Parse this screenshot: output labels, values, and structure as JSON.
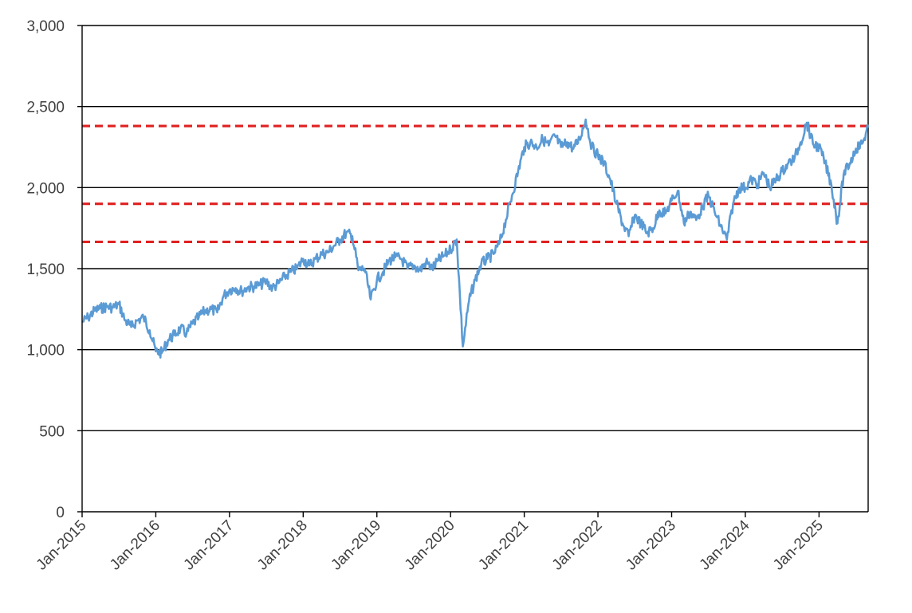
{
  "chart_data": {
    "type": "line",
    "title": "",
    "xlabel": "",
    "ylabel": "",
    "ylim": [
      0,
      3000
    ],
    "yticks": [
      0,
      500,
      1000,
      1500,
      2000,
      2500,
      3000
    ],
    "ytick_labels": [
      "0",
      "500",
      "1,000",
      "1,500",
      "2,000",
      "2,500",
      "3,000"
    ],
    "xlim": [
      "2015-01",
      "2025-09"
    ],
    "xticks": [
      "2015-01",
      "2016-01",
      "2017-01",
      "2018-01",
      "2019-01",
      "2020-01",
      "2021-01",
      "2022-01",
      "2023-01",
      "2024-01",
      "2025-01"
    ],
    "xtick_labels": [
      "Jan-2015",
      "Jan-2016",
      "Jan-2017",
      "Jan-2018",
      "Jan-2019",
      "Jan-2020",
      "Jan-2021",
      "Jan-2022",
      "Jan-2023",
      "Jan-2024",
      "Jan-2025"
    ],
    "grid": true,
    "colors": {
      "series": "#5B9BD5",
      "reference_lines": "#E02020",
      "gridlines": "#000000"
    },
    "reference_lines": [
      2380,
      1900,
      1665
    ],
    "series": [
      {
        "x": [
          "2015-01",
          "2015-02",
          "2015-03",
          "2015-04",
          "2015-05",
          "2015-06",
          "2015-07",
          "2015-08",
          "2015-09",
          "2015-10",
          "2015-11",
          "2015-12",
          "2016-01",
          "2016-02",
          "2016-03",
          "2016-04",
          "2016-05",
          "2016-06",
          "2016-07",
          "2016-08",
          "2016-09",
          "2016-10",
          "2016-11",
          "2016-12",
          "2017-01",
          "2017-02",
          "2017-03",
          "2017-04",
          "2017-05",
          "2017-06",
          "2017-07",
          "2017-08",
          "2017-09",
          "2017-10",
          "2017-11",
          "2017-12",
          "2018-01",
          "2018-02",
          "2018-03",
          "2018-04",
          "2018-05",
          "2018-06",
          "2018-07",
          "2018-08",
          "2018-09",
          "2018-10",
          "2018-11",
          "2018-12",
          "2019-01",
          "2019-02",
          "2019-03",
          "2019-04",
          "2019-05",
          "2019-06",
          "2019-07",
          "2019-08",
          "2019-09",
          "2019-10",
          "2019-11",
          "2019-12",
          "2020-01",
          "2020-02",
          "2020-03",
          "2020-04",
          "2020-05",
          "2020-06",
          "2020-07",
          "2020-08",
          "2020-09",
          "2020-10",
          "2020-11",
          "2020-12",
          "2021-01",
          "2021-02",
          "2021-03",
          "2021-04",
          "2021-05",
          "2021-06",
          "2021-07",
          "2021-08",
          "2021-09",
          "2021-10",
          "2021-11",
          "2021-12",
          "2022-01",
          "2022-02",
          "2022-03",
          "2022-04",
          "2022-05",
          "2022-06",
          "2022-07",
          "2022-08",
          "2022-09",
          "2022-10",
          "2022-11",
          "2022-12",
          "2023-01",
          "2023-02",
          "2023-03",
          "2023-04",
          "2023-05",
          "2023-06",
          "2023-07",
          "2023-08",
          "2023-09",
          "2023-10",
          "2023-11",
          "2023-12",
          "2024-01",
          "2024-02",
          "2024-03",
          "2024-04",
          "2024-05",
          "2024-06",
          "2024-07",
          "2024-08",
          "2024-09",
          "2024-10",
          "2024-11",
          "2024-12",
          "2025-01",
          "2025-02",
          "2025-03",
          "2025-04",
          "2025-05",
          "2025-06",
          "2025-07",
          "2025-08",
          "2025-09"
        ],
        "y": [
          1170,
          1200,
          1240,
          1255,
          1265,
          1260,
          1280,
          1180,
          1140,
          1180,
          1200,
          1120,
          990,
          980,
          1060,
          1090,
          1130,
          1100,
          1160,
          1200,
          1240,
          1250,
          1230,
          1330,
          1370,
          1380,
          1360,
          1385,
          1390,
          1400,
          1420,
          1380,
          1410,
          1450,
          1480,
          1500,
          1560,
          1520,
          1560,
          1590,
          1600,
          1640,
          1680,
          1720,
          1700,
          1490,
          1500,
          1310,
          1430,
          1480,
          1550,
          1570,
          1560,
          1500,
          1520,
          1490,
          1540,
          1500,
          1550,
          1580,
          1620,
          1680,
          1020,
          1300,
          1430,
          1530,
          1560,
          1590,
          1660,
          1800,
          1950,
          2100,
          2250,
          2280,
          2250,
          2300,
          2260,
          2320,
          2250,
          2280,
          2240,
          2300,
          2420,
          2250,
          2200,
          2150,
          2050,
          1900,
          1780,
          1700,
          1830,
          1780,
          1720,
          1750,
          1860,
          1840,
          1920,
          1980,
          1780,
          1850,
          1800,
          1880,
          1950,
          1850,
          1760,
          1680,
          1900,
          2000,
          2000,
          2050,
          2020,
          2090,
          2000,
          2050,
          2100,
          2150,
          2180,
          2280,
          2400,
          2270,
          2250,
          2150,
          2020,
          1780,
          2080,
          2150,
          2240,
          2270,
          2370
        ]
      }
    ]
  }
}
